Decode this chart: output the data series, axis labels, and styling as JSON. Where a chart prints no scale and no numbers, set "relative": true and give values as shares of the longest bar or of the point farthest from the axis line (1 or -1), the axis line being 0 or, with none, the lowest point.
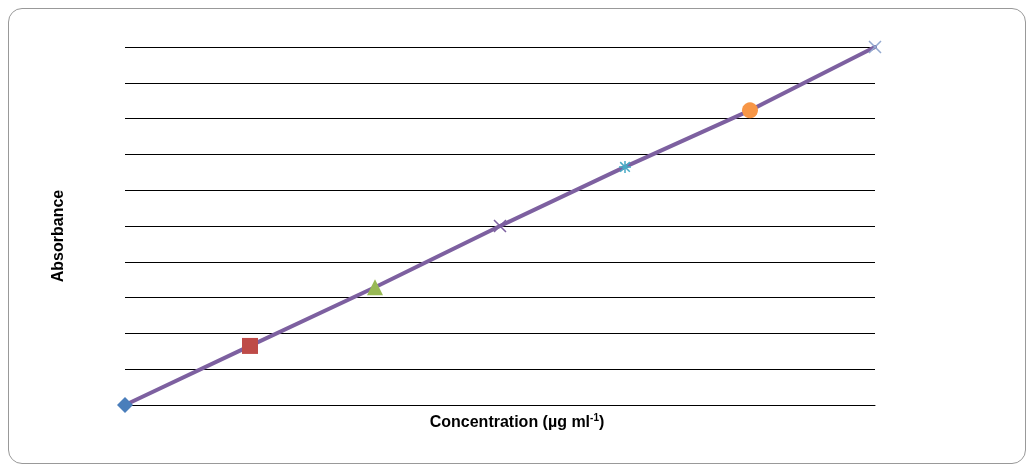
{
  "chart_data": {
    "type": "line",
    "relative": true,
    "xlabel": "Concentration (µg ml$^{-1}$)",
    "ylabel": "Absorbance",
    "grid": "y",
    "categories": [
      null,
      null,
      null,
      null,
      null,
      null,
      null
    ],
    "series": [
      {
        "color": "#7d60a0",
        "values": [
          0,
          0.165,
          0.329,
          0.5,
          0.665,
          0.823,
          1
        ],
        "colors": [
          "#4a7ebb",
          "#be4b48",
          "#98b954",
          "#7d60a0",
          "#46aac5",
          "#f79646",
          "#93a9cf"
        ],
        "marker": [
          "diamond",
          "square",
          "triangle",
          "cross",
          "star",
          "circle",
          "cross"
        ]
      }
    ]
  }
}
